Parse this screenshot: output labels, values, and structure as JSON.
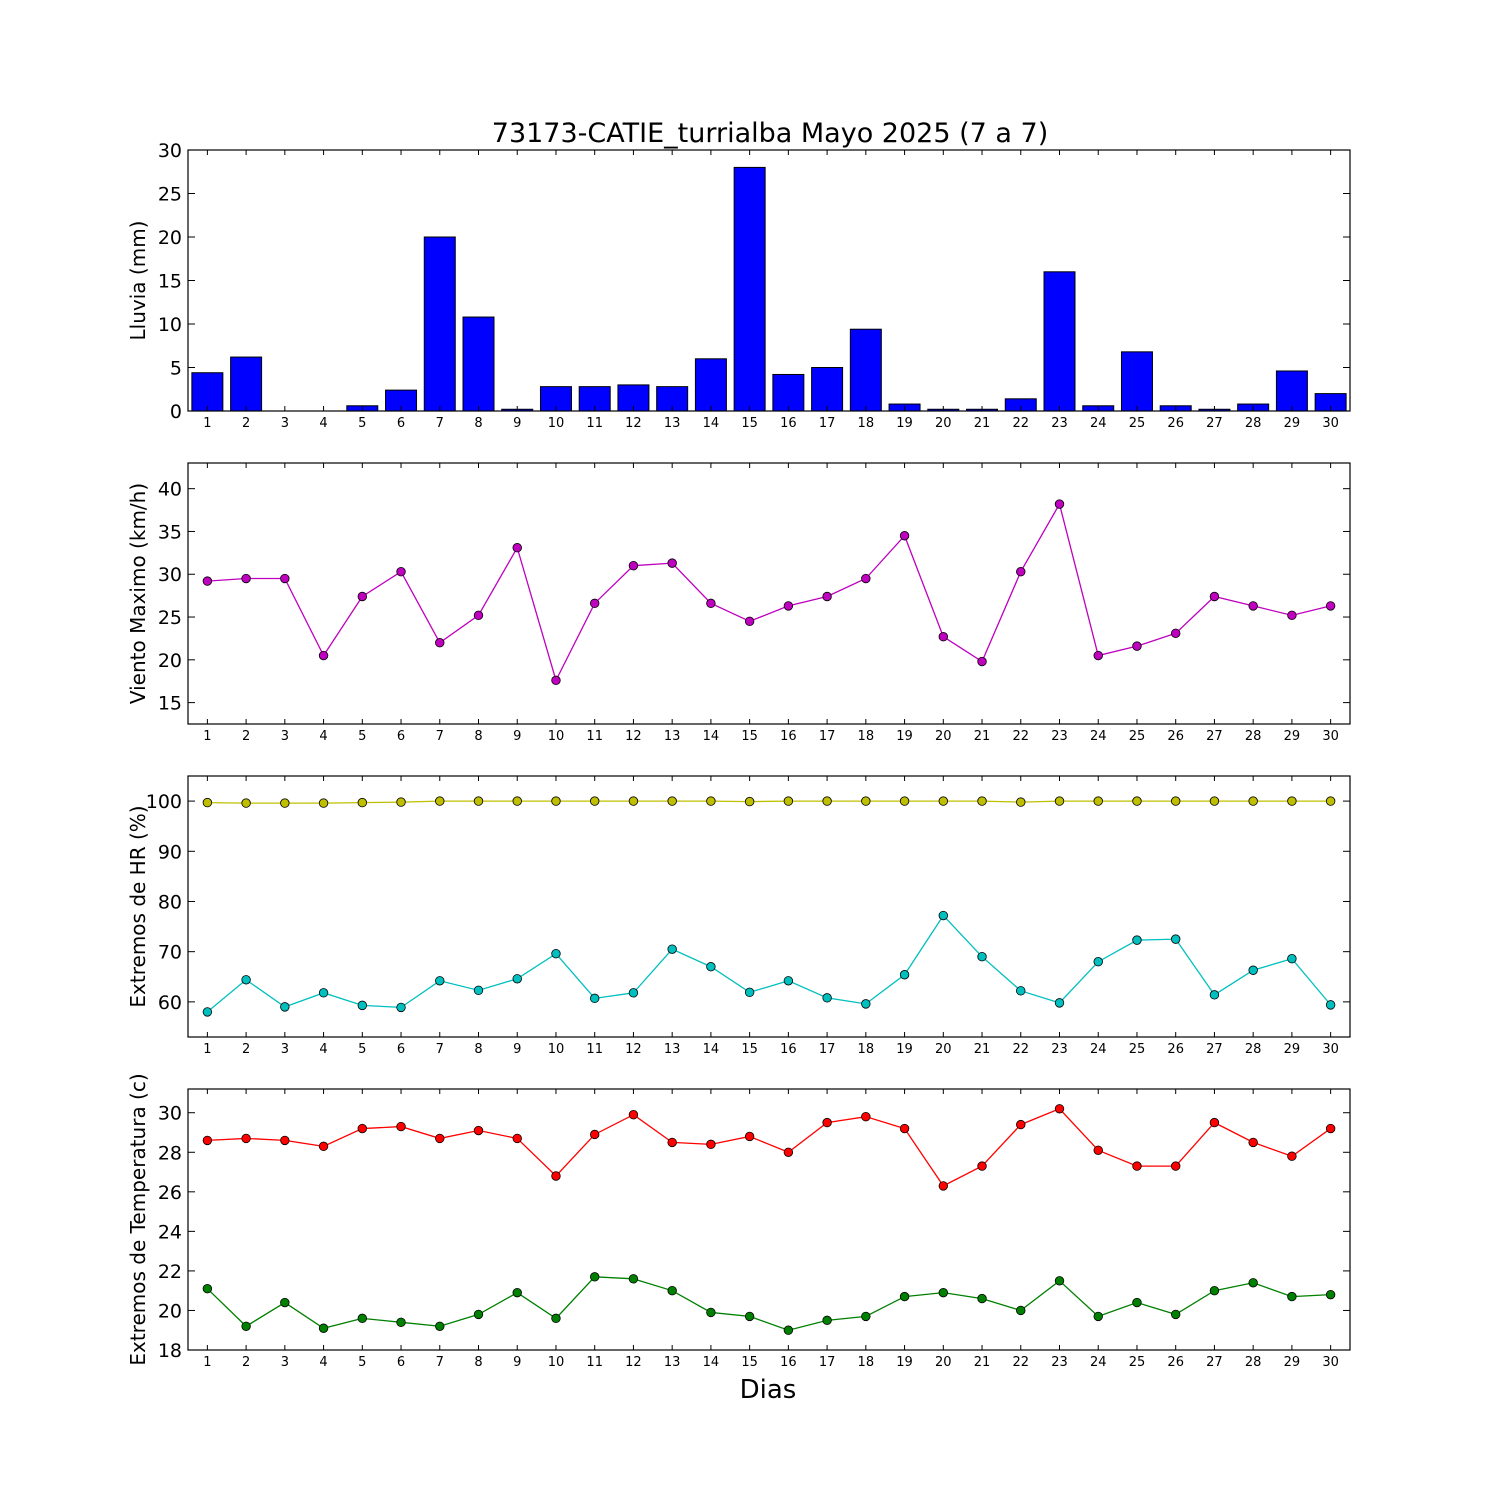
{
  "title": "73173-CATIE_turrialba Mayo 2025  (7 a 7)",
  "xlabel": "Dias",
  "chart_data": [
    {
      "type": "bar",
      "ylabel": "Lluvia (mm)",
      "ylim": [
        0,
        30
      ],
      "yticks": [
        0,
        5,
        10,
        15,
        20,
        25,
        30
      ],
      "x": [
        1,
        2,
        3,
        4,
        5,
        6,
        7,
        8,
        9,
        10,
        11,
        12,
        13,
        14,
        15,
        16,
        17,
        18,
        19,
        20,
        21,
        22,
        23,
        24,
        25,
        26,
        27,
        28,
        29,
        30
      ],
      "series": [
        {
          "color": "#0000ff",
          "values": [
            4.4,
            6.2,
            0,
            0,
            0.6,
            2.4,
            20,
            10.8,
            0.2,
            2.8,
            2.8,
            3.0,
            2.8,
            6.0,
            28,
            4.2,
            5.0,
            9.4,
            0.8,
            0.2,
            0.2,
            1.4,
            16,
            0.6,
            6.8,
            0.6,
            0.2,
            0.8,
            4.6,
            2.0
          ]
        }
      ]
    },
    {
      "type": "line",
      "ylabel": "Viento Maximo (km/h)",
      "ylim": [
        12.5,
        43
      ],
      "yticks": [
        15,
        20,
        25,
        30,
        35,
        40
      ],
      "x": [
        1,
        2,
        3,
        4,
        5,
        6,
        7,
        8,
        9,
        10,
        11,
        12,
        13,
        14,
        15,
        16,
        17,
        18,
        19,
        20,
        21,
        22,
        23,
        24,
        25,
        26,
        27,
        28,
        29,
        30
      ],
      "series": [
        {
          "color": "#bf00bf",
          "values": [
            29.2,
            29.5,
            29.5,
            20.5,
            27.4,
            30.3,
            22.0,
            25.2,
            33.1,
            17.6,
            26.6,
            31.0,
            31.3,
            26.6,
            24.5,
            26.3,
            27.4,
            29.5,
            34.5,
            22.7,
            19.8,
            30.3,
            38.2,
            20.5,
            21.6,
            23.1,
            27.4,
            26.3,
            25.2,
            26.3
          ]
        }
      ]
    },
    {
      "type": "line",
      "ylabel": "Extremos de HR (%)",
      "ylim": [
        53,
        105
      ],
      "yticks": [
        60,
        70,
        80,
        90,
        100
      ],
      "x": [
        1,
        2,
        3,
        4,
        5,
        6,
        7,
        8,
        9,
        10,
        11,
        12,
        13,
        14,
        15,
        16,
        17,
        18,
        19,
        20,
        21,
        22,
        23,
        24,
        25,
        26,
        27,
        28,
        29,
        30
      ],
      "series": [
        {
          "color": "#bfbf00",
          "values": [
            99.7,
            99.6,
            99.6,
            99.6,
            99.7,
            99.8,
            100,
            100,
            100,
            100,
            100,
            100,
            100,
            100,
            99.9,
            100,
            100,
            100,
            100,
            100,
            100,
            99.8,
            100,
            100,
            100,
            100,
            100,
            100,
            100,
            100
          ]
        },
        {
          "color": "#00bfbf",
          "values": [
            58,
            64.4,
            59,
            61.8,
            59.3,
            58.9,
            64.2,
            62.3,
            64.6,
            69.6,
            60.7,
            61.8,
            70.5,
            67,
            61.9,
            64.2,
            60.8,
            59.6,
            65.4,
            77.2,
            69,
            62.2,
            59.8,
            68,
            72.3,
            72.5,
            61.4,
            66.3,
            68.6,
            59.4
          ]
        }
      ]
    },
    {
      "type": "line",
      "ylabel": "Extremos de Temperatura (c)",
      "ylim": [
        18,
        31.2
      ],
      "yticks": [
        18,
        20,
        22,
        24,
        26,
        28,
        30
      ],
      "x": [
        1,
        2,
        3,
        4,
        5,
        6,
        7,
        8,
        9,
        10,
        11,
        12,
        13,
        14,
        15,
        16,
        17,
        18,
        19,
        20,
        21,
        22,
        23,
        24,
        25,
        26,
        27,
        28,
        29,
        30
      ],
      "series": [
        {
          "color": "#ff0000",
          "values": [
            28.6,
            28.7,
            28.6,
            28.3,
            29.2,
            29.3,
            28.7,
            29.1,
            28.7,
            26.8,
            28.9,
            29.9,
            28.5,
            28.4,
            28.8,
            28.0,
            29.5,
            29.8,
            29.2,
            26.3,
            27.3,
            29.4,
            30.2,
            28.1,
            27.3,
            27.3,
            29.5,
            28.5,
            27.8,
            29.2
          ]
        },
        {
          "color": "#008000",
          "values": [
            21.1,
            19.2,
            20.4,
            19.1,
            19.6,
            19.4,
            19.2,
            19.8,
            20.9,
            19.6,
            21.7,
            21.6,
            21.0,
            19.9,
            19.7,
            19.0,
            19.5,
            19.7,
            20.7,
            20.9,
            20.6,
            20.0,
            21.5,
            19.7,
            20.4,
            19.8,
            21.0,
            21.4,
            20.7,
            20.8
          ]
        }
      ]
    }
  ]
}
